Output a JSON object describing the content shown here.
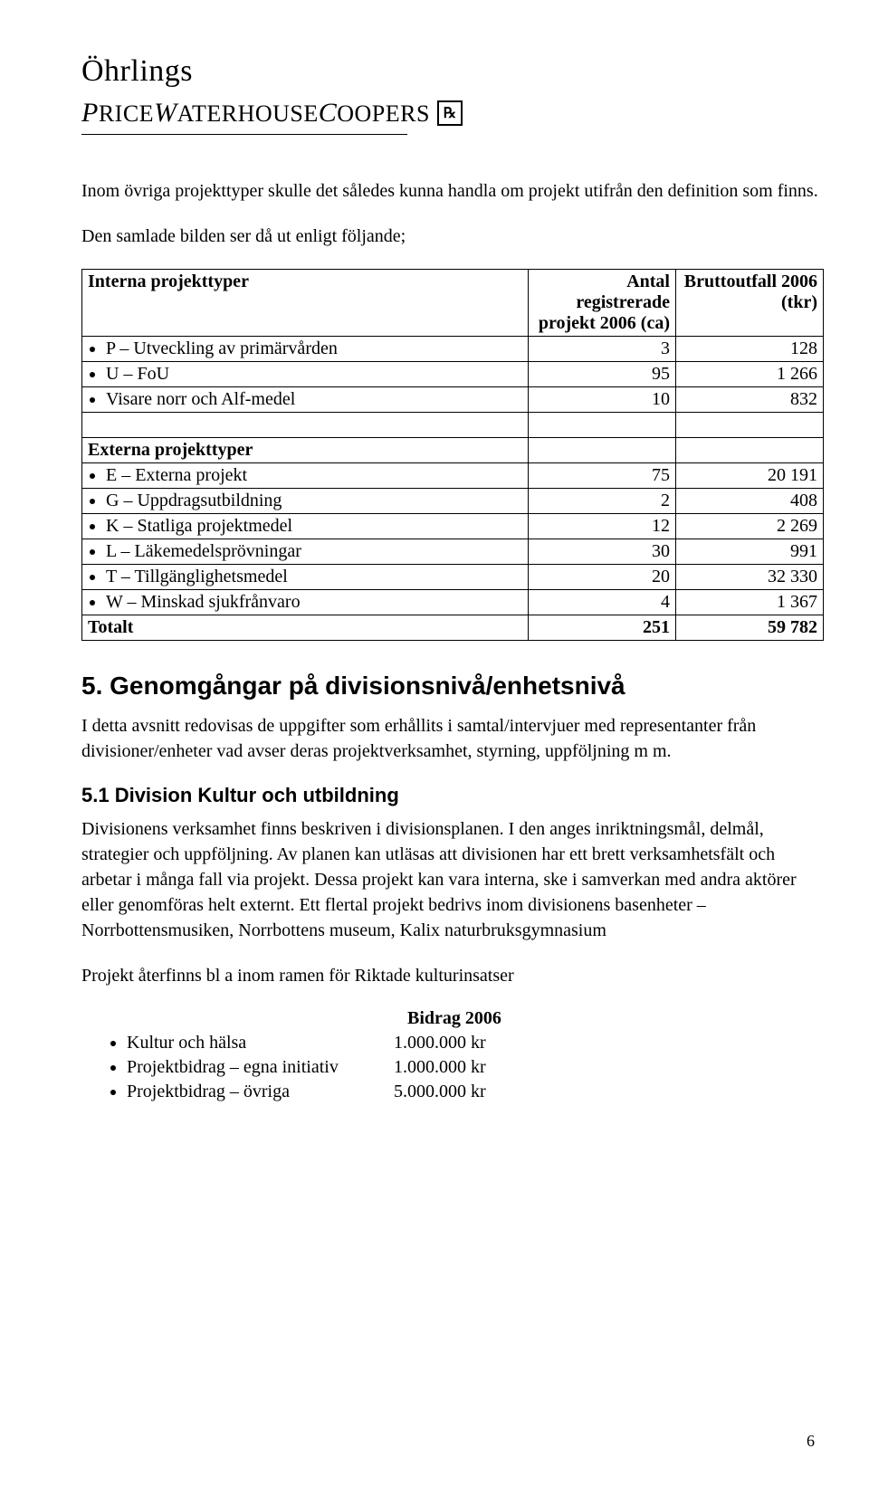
{
  "logo": {
    "top": "Öhrlings",
    "bottom_html_parts": [
      "P",
      "RICE",
      "W",
      "ATERHOUSE",
      "C",
      "OOPERS"
    ],
    "mark": "℞"
  },
  "intro": "Inom övriga projekttyper skulle det således kunna handla om projekt utifrån den definition som finns.",
  "leadin": "Den samlade bilden ser då ut enligt följande;",
  "table": {
    "headers": {
      "col0_a": "Interna projekttyper",
      "col1": "Antal registrerade projekt 2006 (ca)",
      "col2": "Bruttoutfall 2006 (tkr)",
      "col0_b": "Externa projekttyper"
    },
    "interna": [
      {
        "label": "P – Utveckling av primärvården",
        "c1": "3",
        "c2": "128"
      },
      {
        "label": "U – FoU",
        "c1": "95",
        "c2": "1 266"
      },
      {
        "label": "Visare norr och Alf-medel",
        "c1": "10",
        "c2": "832"
      }
    ],
    "externa": [
      {
        "label": "E – Externa projekt",
        "c1": "75",
        "c2": "20 191"
      },
      {
        "label": "G – Uppdragsutbildning",
        "c1": "2",
        "c2": "408"
      },
      {
        "label": "K – Statliga projektmedel",
        "c1": "12",
        "c2": "2 269"
      },
      {
        "label": "L – Läkemedelsprövningar",
        "c1": "30",
        "c2": "991"
      },
      {
        "label": "T – Tillgänglighetsmedel",
        "c1": "20",
        "c2": "32 330"
      },
      {
        "label": "W – Minskad sjukfrånvaro",
        "c1": "4",
        "c2": "1 367"
      }
    ],
    "total": {
      "label": "Totalt",
      "c1": "251",
      "c2": "59 782"
    }
  },
  "section5": {
    "title": "5. Genomgångar på divisionsnivå/enhetsnivå",
    "p1": "I detta avsnitt redovisas de uppgifter som erhållits i samtal/intervjuer med representanter från divisioner/enheter vad avser deras projektverksamhet, styrning, uppföljning m m."
  },
  "section5_1": {
    "title": "5.1 Division Kultur och utbildning",
    "p1": "Divisionens verksamhet finns beskriven i divisionsplanen. I den anges inriktningsmål, delmål, strategier och uppföljning. Av planen kan utläsas att divisionen har ett brett verksamhetsfält och arbetar i många fall via projekt. Dessa projekt kan vara interna, ske i samverkan med andra aktörer eller genomföras helt externt. Ett flertal projekt bedrivs inom divisionens basenheter – Norrbottensmusiken, Norrbottens museum, Kalix naturbruksgymnasium",
    "p2": "Projekt återfinns bl a inom ramen för Riktade kulturinsatser",
    "list_heading": "Bidrag 2006",
    "items": [
      {
        "label": "Kultur och hälsa",
        "val": "1.000.000 kr"
      },
      {
        "label": "Projektbidrag – egna initiativ",
        "val": "1.000.000 kr"
      },
      {
        "label": "Projektbidrag – övriga",
        "val": "5.000.000 kr"
      }
    ]
  },
  "page_number": "6"
}
